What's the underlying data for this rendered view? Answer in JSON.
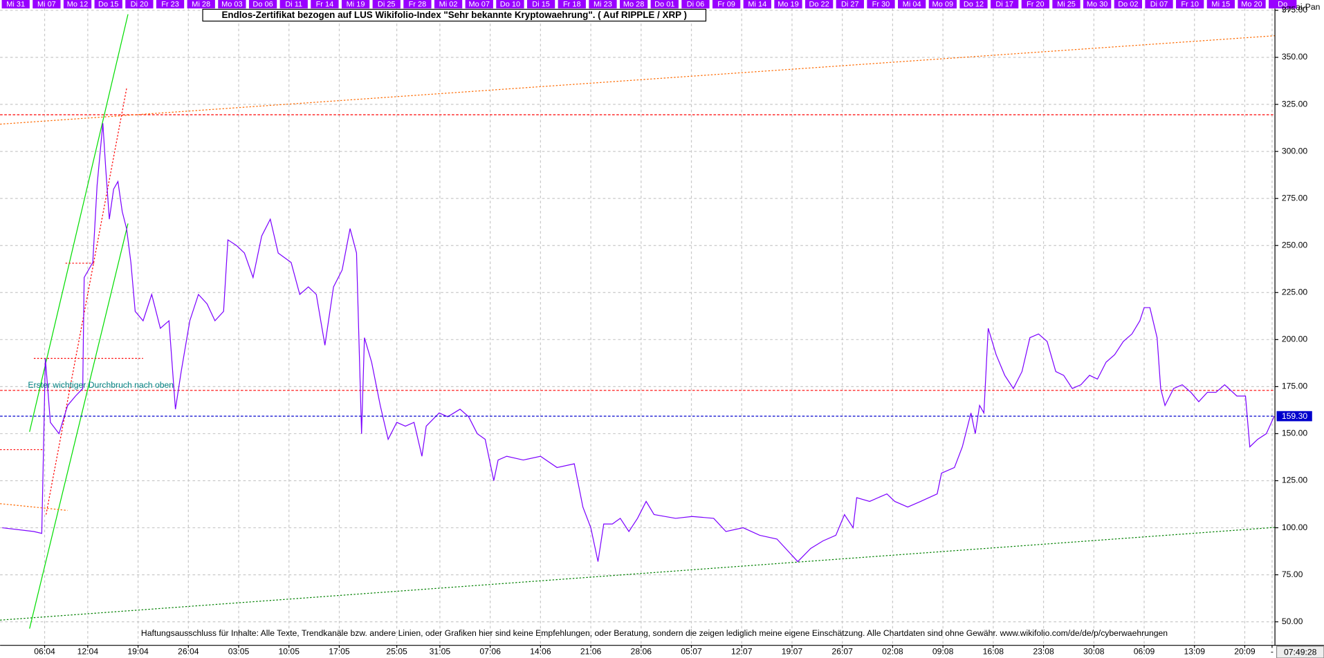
{
  "chart_data": {
    "type": "line",
    "title": "Endlos-Zertifikat bezogen auf LUS Wikifolio-Index \"Sehr bekannte Kryptowaehrung\". ( Auf RIPPLE / XRP )",
    "copyright": "(c)Tai-Pan",
    "annotation": "Erster wichtiger Durchbruch nach oben",
    "disclaimer": "Haftungsausschluss für Inhalte: Alle Texte, Trendkanäle bzw. andere Linien, oder Grafiken hier sind keine Empfehlungen, oder Beratung, sondern die zeigen lediglich meine eigene Einschätzung. Alle Chartdaten sind ohne Gewähr.  www.wikifolio.com/de/de/p/cyberwaehrungen",
    "time": "07:49:28",
    "top_labels": [
      "Mi 31",
      "Mi 07",
      "Mo 12",
      "Do 15",
      "Di 20",
      "Fr 23",
      "Mi 28",
      "Mo 03",
      "Do 06",
      "Di 11",
      "Fr 14",
      "Mi 19",
      "Di 25",
      "Fr 28",
      "Mi 02",
      "Mo 07",
      "Do 10",
      "Di 15",
      "Fr 18",
      "Mi 23",
      "Mo 28",
      "Do 01",
      "Di 06",
      "Fr 09",
      "Mi 14",
      "Mo 19",
      "Do 22",
      "Di 27",
      "Fr 30",
      "Mi 04",
      "Mo 09",
      "Do 12",
      "Di 17",
      "Fr 20",
      "Mi 25",
      "Mo 30",
      "Do 02",
      "Di 07",
      "Fr 10",
      "Mi 15",
      "Mo 20",
      "Do"
    ],
    "color": "#7b00ff",
    "x": [
      -5.9,
      -1.5,
      -0.4,
      0.1,
      0.8,
      2.0,
      3.2,
      4.3,
      5.3,
      5.5,
      6.7,
      7.3,
      8.1,
      8.5,
      9.0,
      9.6,
      10.2,
      10.8,
      11.4,
      12.0,
      12.6,
      13.7,
      14.9,
      16.1,
      17.3,
      18.2,
      19.0,
      20.2,
      21.4,
      22.6,
      23.7,
      24.9,
      25.5,
      26.7,
      27.8,
      29.0,
      30.2,
      31.4,
      32.5,
      34.3,
      35.5,
      36.7,
      37.8,
      39.0,
      40.2,
      41.4,
      42.5,
      43.4,
      44.1,
      44.5,
      45.5,
      46.7,
      47.8,
      49.0,
      50.2,
      51.4,
      52.5,
      53.1,
      54.9,
      56.1,
      57.8,
      59.0,
      60.2,
      61.3,
      62.5,
      63.1,
      64.3,
      66.6,
      69.0,
      71.3,
      73.7,
      74.9,
      76.0,
      77.0,
      77.8,
      79.0,
      80.1,
      81.3,
      82.5,
      83.7,
      84.8,
      87.8,
      90.1,
      93.1,
      94.8,
      97.2,
      99.5,
      101.9,
      104.8,
      106.6,
      108.3,
      110.1,
      111.3,
      112.5,
      113.0,
      114.8,
      117.2,
      118.3,
      120.1,
      121.9,
      124.2,
      124.8,
      126.6,
      127.7,
      128.9,
      129.5,
      130.1,
      130.7,
      131.3,
      132.4,
      133.6,
      134.8,
      136.0,
      137.1,
      138.3,
      139.5,
      140.7,
      141.8,
      143.0,
      144.2,
      145.4,
      146.5,
      147.7,
      148.9,
      150.1,
      151.3,
      152.4,
      153.0,
      153.8,
      154.8,
      155.3,
      155.9,
      157.1,
      158.3,
      159.5,
      160.6,
      161.8,
      163.0,
      164.2,
      165.9,
      167.1,
      167.7,
      168.8,
      170.0,
      171.1
    ],
    "values": [
      100,
      98,
      97,
      190,
      156,
      150,
      165,
      170,
      174,
      233,
      241,
      282,
      315,
      291,
      264,
      280,
      284,
      268,
      259,
      241,
      215,
      210,
      224,
      206,
      210,
      163,
      183,
      210,
      224,
      219,
      210,
      215,
      253,
      250,
      246,
      233,
      255,
      264,
      246,
      241,
      224,
      228,
      224,
      197,
      228,
      237,
      259,
      246,
      150,
      201,
      188,
      165,
      147,
      156,
      154,
      156,
      138,
      154,
      161,
      159,
      163,
      159,
      150,
      147,
      125,
      136,
      138,
      136,
      138,
      132,
      134,
      111,
      100,
      82,
      102,
      102,
      105,
      98,
      105,
      114,
      107,
      105,
      106,
      105,
      98,
      100,
      96,
      94,
      82,
      89,
      93,
      96,
      107,
      100,
      116,
      114,
      118,
      114,
      111,
      114,
      118,
      129,
      132,
      143,
      161,
      150,
      165,
      161,
      206,
      192,
      181,
      174,
      183,
      201,
      203,
      199,
      183,
      181,
      174,
      176,
      181,
      179,
      188,
      192,
      199,
      203,
      210,
      217,
      217,
      201,
      174,
      165,
      174,
      176,
      172,
      167,
      172,
      172,
      176,
      170,
      170,
      143,
      147,
      150,
      159.3
    ],
    "last_price": {
      "value": 159.3,
      "label": "159.30"
    },
    "reference_lines": [
      {
        "value": 319.5,
        "color": "#ff0000"
      },
      {
        "value": 173,
        "color": "#ff0000"
      }
    ],
    "trend_lines": [
      {
        "x": [
          -6.2,
          171.2
        ],
        "y": [
          314.5,
          361.5
        ],
        "color": "#ff6a00",
        "style": "dotted"
      },
      {
        "x": [
          -6.2,
          171.2
        ],
        "y": [
          50.9,
          100.2
        ],
        "color": "#008000",
        "style": "dotted"
      },
      {
        "x": [
          -2.1,
          11.6
        ],
        "y": [
          151,
          372.9
        ],
        "color": "#00dd00",
        "style": "solid"
      },
      {
        "x": [
          -2.1,
          11.6
        ],
        "y": [
          46.4,
          261.7
        ],
        "color": "#00dd00",
        "style": "solid"
      },
      {
        "x": [
          0.2,
          11.4
        ],
        "y": [
          107,
          333.4
        ],
        "color": "#ff0000",
        "style": "dotted"
      },
      {
        "x": [
          -6.2,
          3.2
        ],
        "y": [
          112.8,
          109.2
        ],
        "color": "#ff6a00",
        "style": "dotted"
      },
      {
        "x": [
          -6.2,
          -0.1
        ],
        "y": [
          141.5,
          141.5
        ],
        "color": "#ff0000",
        "style": "dotted"
      },
      {
        "x": [
          -1.5,
          13.7
        ],
        "y": [
          190,
          190
        ],
        "color": "#ff0000",
        "style": "dotted"
      },
      {
        "x": [
          2.9,
          6.9
        ],
        "y": [
          240.6,
          240.6
        ],
        "color": "#ff0000",
        "style": "dotted"
      }
    ],
    "xlim": [
      -6.2,
      171.2
    ],
    "xticks": [
      {
        "value": 0,
        "label": "06:04"
      },
      {
        "value": 6,
        "label": "12:04"
      },
      {
        "value": 13,
        "label": "19:04"
      },
      {
        "value": 20,
        "label": "26:04"
      },
      {
        "value": 27,
        "label": "03:05"
      },
      {
        "value": 34,
        "label": "10:05"
      },
      {
        "value": 41,
        "label": "17:05"
      },
      {
        "value": 49,
        "label": "25:05"
      },
      {
        "value": 55,
        "label": "31:05"
      },
      {
        "value": 62,
        "label": "07:06"
      },
      {
        "value": 69,
        "label": "14:06"
      },
      {
        "value": 76,
        "label": "21:06"
      },
      {
        "value": 83,
        "label": "28:06"
      },
      {
        "value": 90,
        "label": "05:07"
      },
      {
        "value": 97,
        "label": "12:07"
      },
      {
        "value": 104,
        "label": "19:07"
      },
      {
        "value": 111,
        "label": "26:07"
      },
      {
        "value": 118,
        "label": "02:08"
      },
      {
        "value": 125,
        "label": "09:08"
      },
      {
        "value": 132,
        "label": "16:08"
      },
      {
        "value": 139,
        "label": "23:08"
      },
      {
        "value": 146,
        "label": "30:08"
      },
      {
        "value": 153,
        "label": "06:09"
      },
      {
        "value": 160,
        "label": "13:09"
      },
      {
        "value": 167,
        "label": "20:09"
      },
      {
        "value": 170.8,
        "label": "-"
      }
    ],
    "ylim": [
      37.5,
      376
    ],
    "yticks": [
      {
        "value": 50,
        "label": "50.00"
      },
      {
        "value": 75,
        "label": "75.00"
      },
      {
        "value": 100,
        "label": "100.00"
      },
      {
        "value": 125,
        "label": "125.00"
      },
      {
        "value": 150,
        "label": "150.00"
      },
      {
        "value": 175,
        "label": "175.00"
      },
      {
        "value": 200,
        "label": "200.00"
      },
      {
        "value": 225,
        "label": "225.00"
      },
      {
        "value": 250,
        "label": "250.00"
      },
      {
        "value": 275,
        "label": "275.00"
      },
      {
        "value": 300,
        "label": "300.00"
      },
      {
        "value": 325,
        "label": "325.00"
      },
      {
        "value": 350,
        "label": "350.00"
      },
      {
        "value": 375,
        "label": "375.00"
      }
    ],
    "grid": true
  }
}
